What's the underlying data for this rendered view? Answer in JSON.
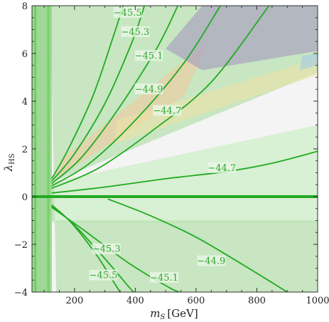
{
  "chart_data": {
    "type": "contour",
    "xlabel_main": "m",
    "xlabel_sub": "S",
    "xlabel_unit": "[GeV]",
    "ylabel_main": "λ",
    "ylabel_sub": "HS",
    "xlim": [
      60,
      1000
    ],
    "ylim": [
      -4,
      8
    ],
    "xticks": [
      200,
      400,
      600,
      800,
      1000
    ],
    "yticks": [
      -4,
      -2,
      0,
      2,
      4,
      6,
      8
    ],
    "grid": false,
    "colors": {
      "contour": "#22aa22",
      "region_green_light": "#d8f0d3",
      "region_green_mid": "#b8e2b0",
      "region_grey": "#e4e4e4",
      "region_orange": "#f0c9a0",
      "region_yellow": "#eee1a6",
      "region_purple": "#a89ec0",
      "region_blue": "#a9cde0",
      "vertical_band": "#66cc55"
    },
    "shaded_regions": [
      {
        "label": "grey",
        "polygon": [
          [
            60,
            8
          ],
          [
            125,
            8
          ],
          [
            125,
            -4
          ],
          [
            60,
            -4
          ]
        ]
      },
      {
        "label": "green-light",
        "polygon": [
          [
            125,
            0.6
          ],
          [
            1000,
            3.0
          ],
          [
            1000,
            -1.1
          ],
          [
            125,
            -1.1
          ]
        ]
      },
      {
        "label": "green-mid",
        "polygon": [
          [
            120,
            8
          ],
          [
            1000,
            8
          ],
          [
            1000,
            5.2
          ],
          [
            125,
            0.6
          ],
          [
            125,
            -1.0
          ],
          [
            1000,
            -1.0
          ],
          [
            1000,
            -4
          ],
          [
            140,
            -4
          ]
        ]
      },
      {
        "label": "orange",
        "polygon": [
          [
            130,
            0.7
          ],
          [
            560,
            4.2
          ],
          [
            640,
            6.5
          ],
          [
            160,
            1.6
          ]
        ]
      },
      {
        "label": "yellow",
        "polygon": [
          [
            330,
            2.2
          ],
          [
            1000,
            5.1
          ],
          [
            1000,
            5.8
          ],
          [
            340,
            3.2
          ]
        ]
      },
      {
        "label": "purple",
        "polygon": [
          [
            500,
            6.2
          ],
          [
            620,
            8
          ],
          [
            1000,
            8
          ],
          [
            1000,
            6.1
          ],
          [
            620,
            5.3
          ]
        ]
      },
      {
        "label": "blue",
        "polygon": [
          [
            940,
            5.3
          ],
          [
            1000,
            5.5
          ],
          [
            1000,
            6.0
          ],
          [
            950,
            5.9
          ]
        ]
      }
    ],
    "vertical_bands": [
      {
        "x0": 60,
        "x1": 125,
        "opacity": 0.55
      },
      {
        "x0": 68,
        "x1": 74,
        "opacity": 0.95
      },
      {
        "x0": 110,
        "x1": 118,
        "opacity": 0.6
      }
    ],
    "zero_line": {
      "y": 0,
      "x0": 60,
      "x1": 1000
    },
    "contours": [
      {
        "level": "−45.5",
        "points": [
          [
            125,
            0.75
          ],
          [
            180,
            2.0
          ],
          [
            260,
            4.2
          ],
          [
            330,
            6.8
          ],
          [
            360,
            8
          ]
        ]
      },
      {
        "level": "−45.3",
        "points": [
          [
            125,
            0.65
          ],
          [
            200,
            1.8
          ],
          [
            300,
            3.9
          ],
          [
            390,
            6.5
          ],
          [
            430,
            8
          ]
        ]
      },
      {
        "level": "−45.1",
        "points": [
          [
            125,
            0.55
          ],
          [
            220,
            1.6
          ],
          [
            340,
            3.6
          ],
          [
            470,
            6.2
          ],
          [
            540,
            8
          ]
        ]
      },
      {
        "level": "−44.9",
        "points": [
          [
            125,
            0.45
          ],
          [
            250,
            1.4
          ],
          [
            400,
            3.2
          ],
          [
            560,
            5.6
          ],
          [
            680,
            8
          ]
        ]
      },
      {
        "level": "−44.7",
        "points": [
          [
            125,
            0.35
          ],
          [
            280,
            1.2
          ],
          [
            460,
            2.8
          ],
          [
            650,
            4.8
          ],
          [
            840,
            8
          ]
        ]
      },
      {
        "level": "−44.7",
        "points": [
          [
            125,
            0.15
          ],
          [
            300,
            0.4
          ],
          [
            500,
            0.75
          ],
          [
            700,
            1.05
          ],
          [
            850,
            1.4
          ],
          [
            1000,
            1.9
          ]
        ]
      },
      {
        "level": "−45.3",
        "points": [
          [
            125,
            -0.4
          ],
          [
            200,
            -1.2
          ],
          [
            300,
            -2.6
          ],
          [
            380,
            -3.8
          ],
          [
            395,
            -4
          ]
        ]
      },
      {
        "level": "−45.5",
        "points": [
          [
            125,
            -0.35
          ],
          [
            190,
            -1.1
          ],
          [
            270,
            -2.4
          ],
          [
            330,
            -3.6
          ],
          [
            350,
            -4
          ]
        ]
      },
      {
        "level": "−45.1",
        "points": [
          [
            125,
            -0.45
          ],
          [
            230,
            -1.4
          ],
          [
            380,
            -2.8
          ],
          [
            510,
            -3.8
          ],
          [
            545,
            -4
          ]
        ]
      },
      {
        "level": "−44.9",
        "points": [
          [
            310,
            -0.1
          ],
          [
            450,
            -0.8
          ],
          [
            600,
            -1.7
          ],
          [
            760,
            -2.9
          ],
          [
            900,
            -4
          ]
        ]
      }
    ],
    "contour_labels": [
      {
        "text": "−45.5",
        "x": 375,
        "y": 7.7
      },
      {
        "text": "−45.3",
        "x": 400,
        "y": 6.9
      },
      {
        "text": "−45.1",
        "x": 445,
        "y": 5.9
      },
      {
        "text": "−44.9",
        "x": 445,
        "y": 4.5
      },
      {
        "text": "−44.7",
        "x": 505,
        "y": 3.6
      },
      {
        "text": "−44.7",
        "x": 685,
        "y": 1.2
      },
      {
        "text": "−45.3",
        "x": 305,
        "y": -2.2
      },
      {
        "text": "−44.9",
        "x": 650,
        "y": -2.7
      },
      {
        "text": "−45.5",
        "x": 295,
        "y": -3.3
      },
      {
        "text": "−45.1",
        "x": 495,
        "y": -3.4
      }
    ]
  }
}
